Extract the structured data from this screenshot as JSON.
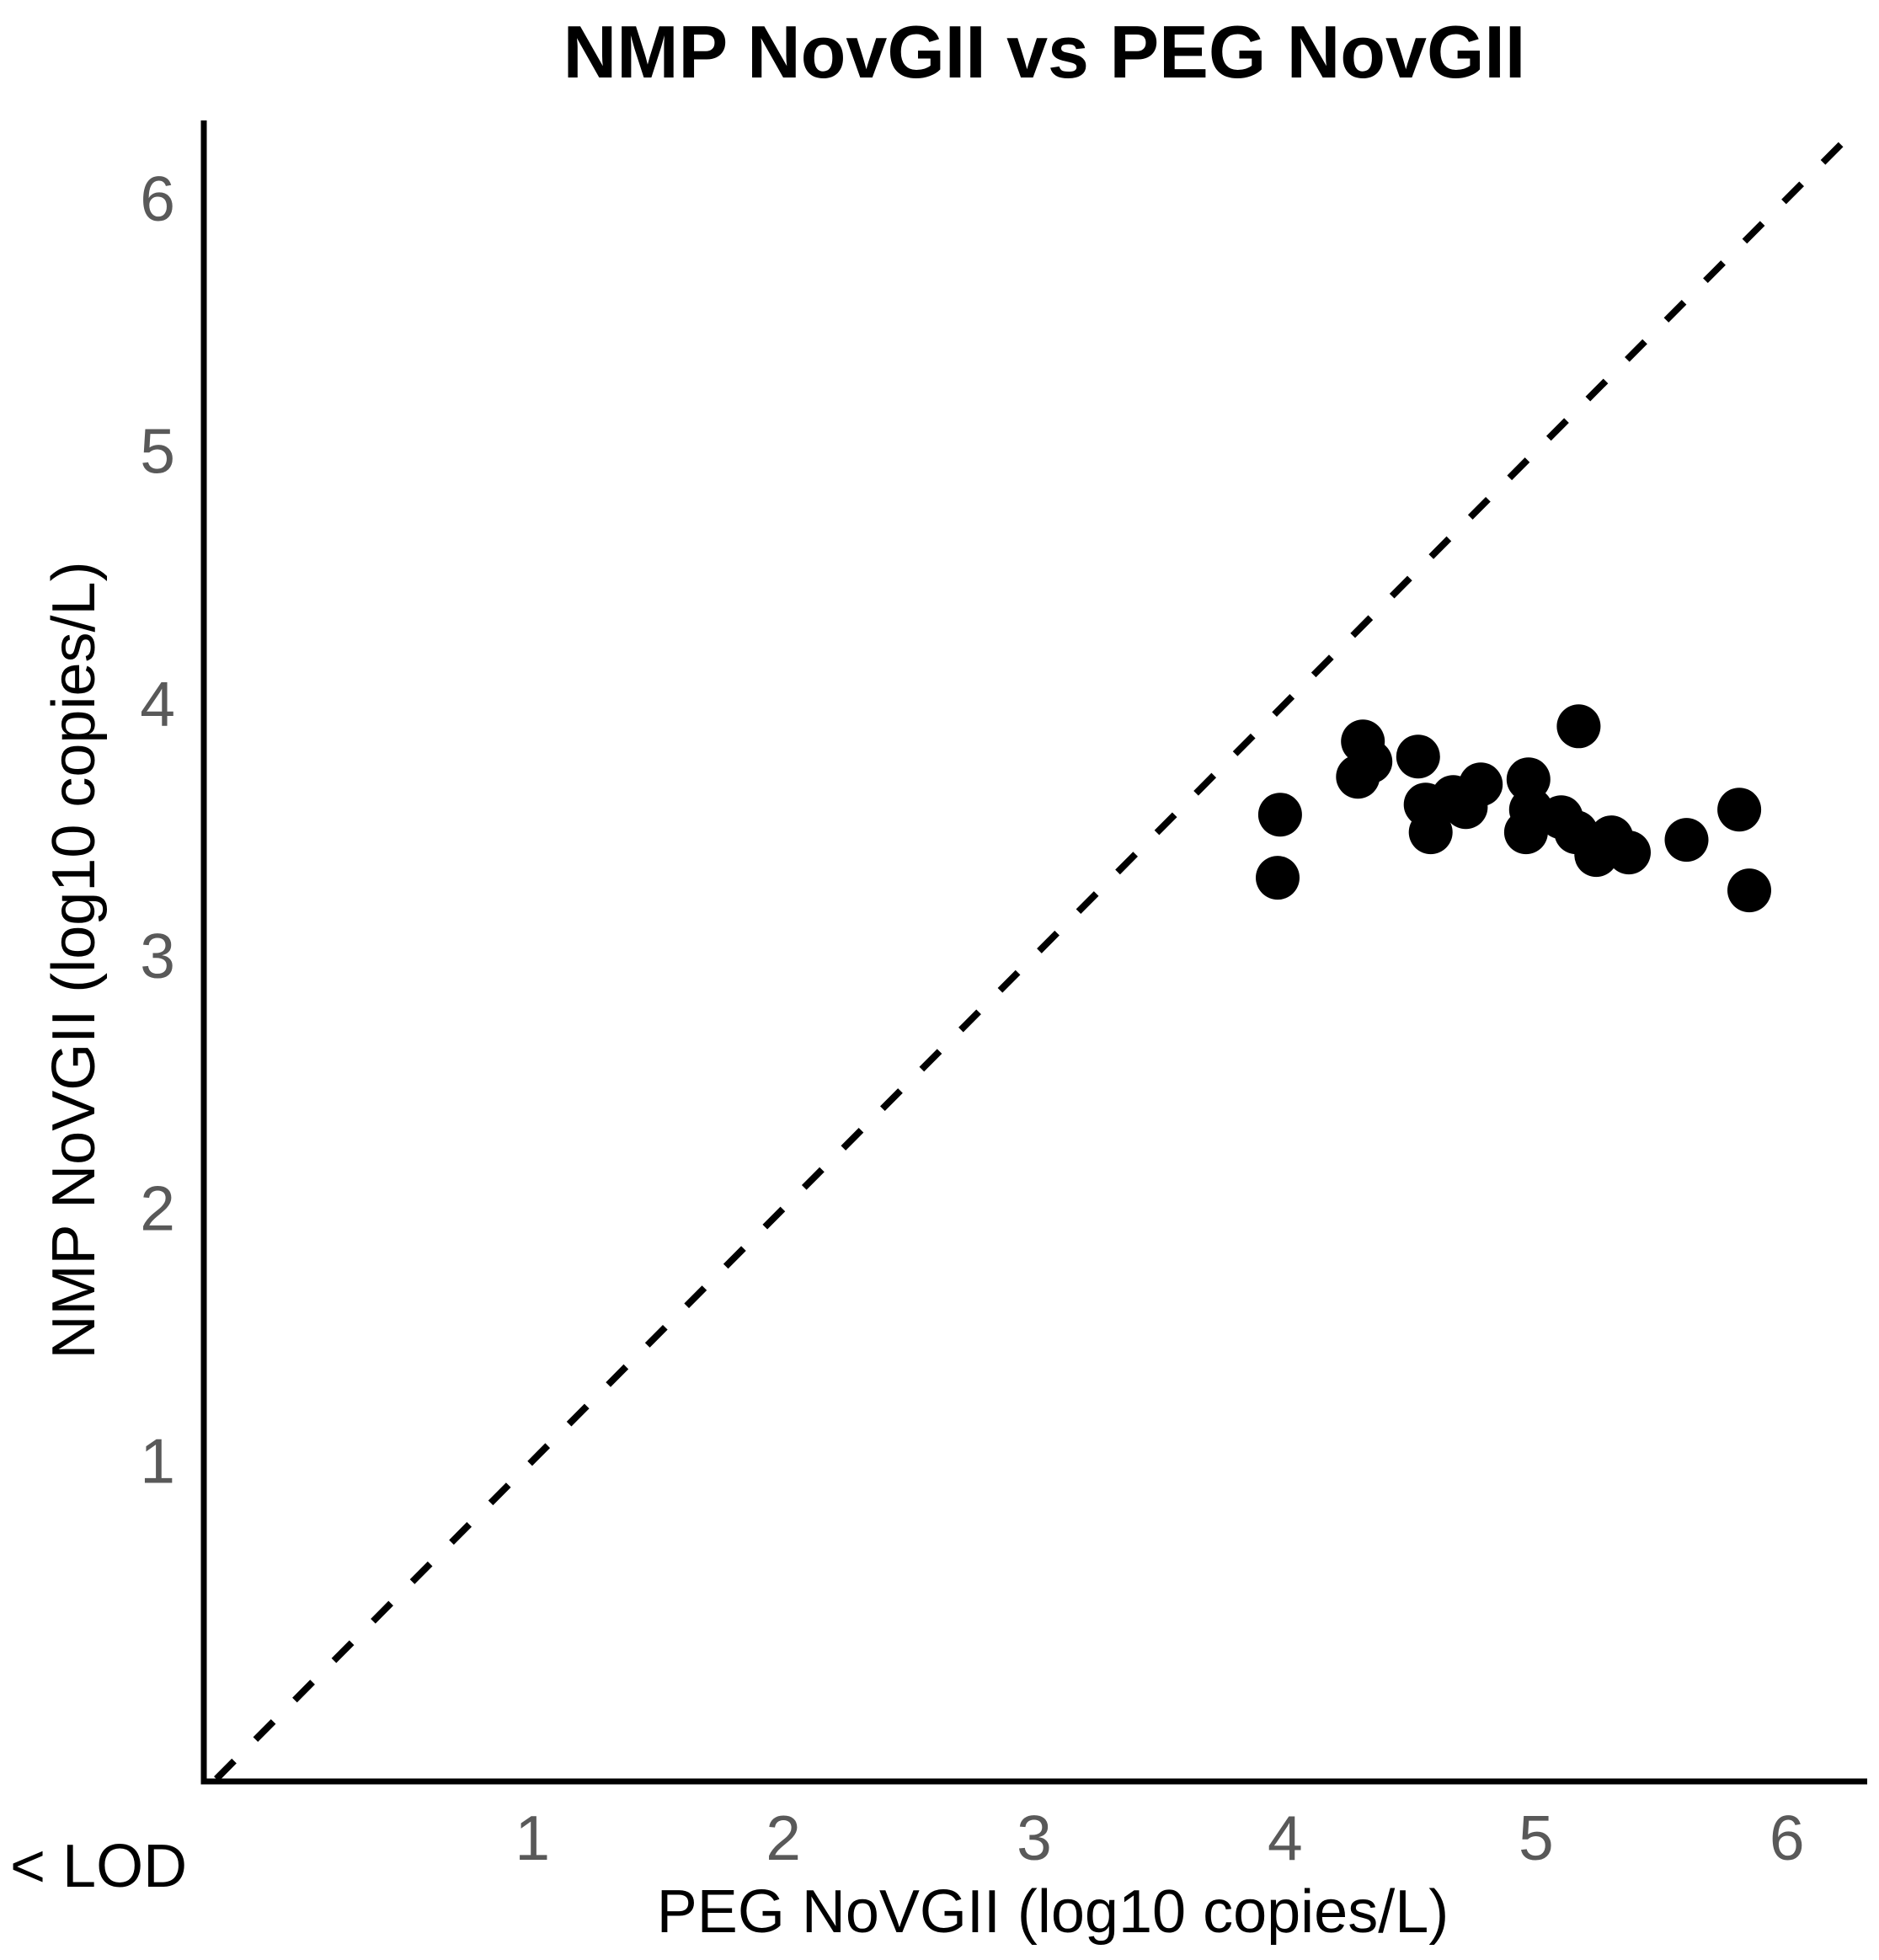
{
  "chart_data": {
    "type": "scatter",
    "title": "NMP NovGII vs PEG NovGII",
    "xlabel": "PEG NoVGII (log10 copies/L)",
    "ylabel": "NMP NoVGII (log10 copies/L)",
    "lod_label": "< LOD",
    "xlim": [
      -0.32,
      6.32
    ],
    "ylim": [
      -0.28,
      6.31
    ],
    "x_ticks": [
      1,
      2,
      3,
      4,
      5,
      6
    ],
    "y_ticks": [
      1,
      2,
      3,
      4,
      5,
      6
    ],
    "grid": false,
    "legend": false,
    "identity_line": {
      "y_equals_x": true,
      "style": "dashed",
      "range": [
        -0.26,
        6.26
      ]
    },
    "marker": {
      "shape": "circle",
      "radius_px": 26
    },
    "points": [
      [
        3.98,
        3.56
      ],
      [
        3.97,
        3.31
      ],
      [
        4.31,
        3.85
      ],
      [
        4.34,
        3.77
      ],
      [
        4.29,
        3.71
      ],
      [
        4.53,
        3.79
      ],
      [
        4.56,
        3.6
      ],
      [
        4.58,
        3.49
      ],
      [
        4.67,
        3.63
      ],
      [
        4.72,
        3.59
      ],
      [
        4.78,
        3.68
      ],
      [
        4.97,
        3.7
      ],
      [
        4.98,
        3.58
      ],
      [
        4.96,
        3.49
      ],
      [
        5.1,
        3.55
      ],
      [
        5.16,
        3.49
      ],
      [
        5.17,
        3.91
      ],
      [
        5.24,
        3.4
      ],
      [
        5.3,
        3.47
      ],
      [
        5.37,
        3.41
      ],
      [
        5.6,
        3.46
      ],
      [
        5.81,
        3.58
      ],
      [
        5.85,
        3.26
      ]
    ],
    "colors": {
      "point": "#000000",
      "axis": "#000000",
      "tick_label": "#595959",
      "title": "#000000",
      "axis_label": "#000000",
      "lod_label": "#000000",
      "identity_line": "#000000",
      "background": "#ffffff"
    }
  }
}
